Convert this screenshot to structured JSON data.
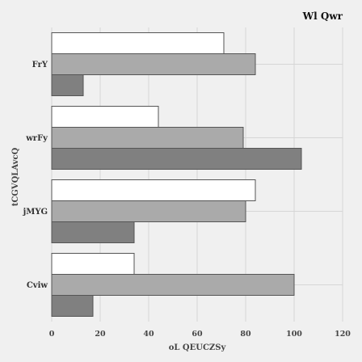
{
  "chart_data": {
    "type": "bar",
    "orientation": "horizontal",
    "title": "Wl Qwr",
    "xlabel": "oL QEUCZSy",
    "ylabel": "tCGVQLAvcQ",
    "categories": [
      "FrY",
      "wrFy",
      "jMYG",
      "Cviw"
    ],
    "xlim": [
      0,
      120
    ],
    "xticks": [
      0,
      20,
      40,
      60,
      80,
      100,
      120
    ],
    "grid": true,
    "series": [
      {
        "color": "#ffffff",
        "values": [
          71,
          44,
          84,
          34
        ]
      },
      {
        "color": "#aaaaaa",
        "values": [
          84,
          79,
          80,
          100
        ]
      },
      {
        "color": "#808080",
        "values": [
          13,
          103,
          34,
          17
        ]
      }
    ]
  }
}
